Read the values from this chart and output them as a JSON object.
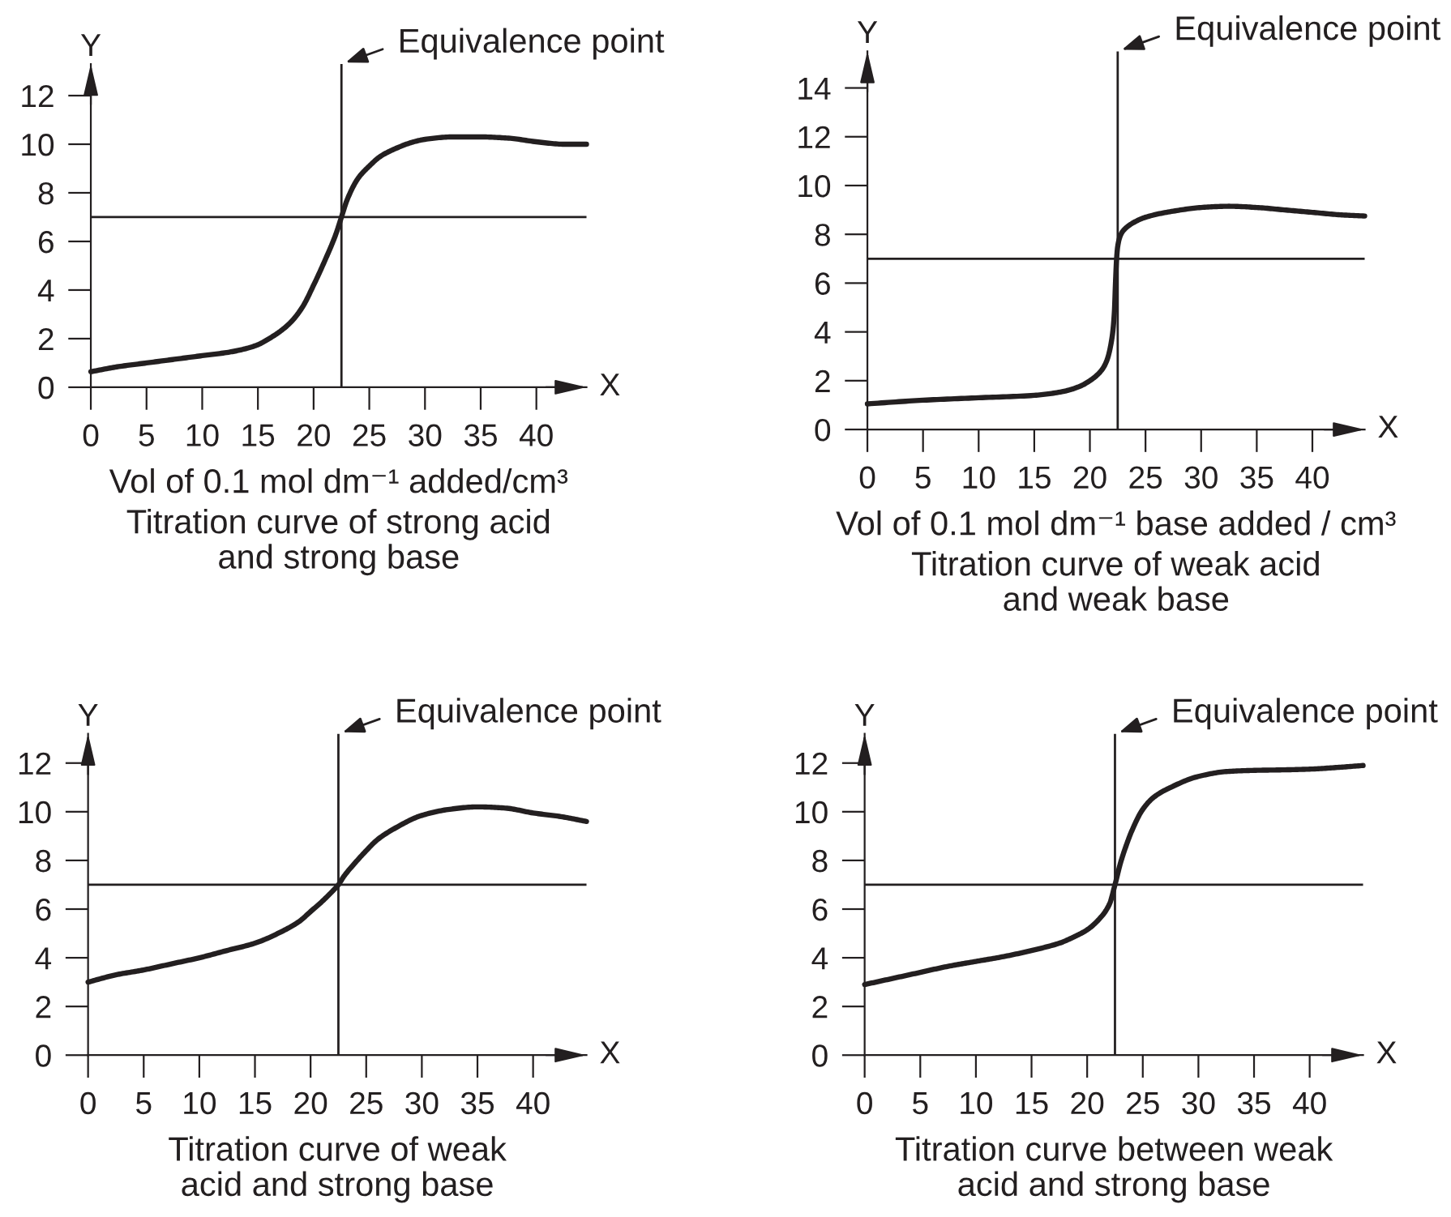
{
  "chart_data": [
    {
      "type": "line",
      "xlabel": "X",
      "ylabel": "Y",
      "title": "Titration curve of strong acid\nand strong base",
      "annotations": [
        "Vol of 0.1 mol dm⁻¹ added/cm³"
      ],
      "xlim": [
        0,
        44.5
      ],
      "xticks": [
        0,
        5,
        10,
        15,
        20,
        25,
        30,
        35,
        40
      ],
      "ylim": [
        0,
        13.3
      ],
      "yticks": [
        0,
        2,
        4,
        6,
        8,
        10,
        12
      ],
      "ref_lines": [
        {
          "axis": "x",
          "value": 22.5,
          "label": "Equivalence point",
          "color": "#231f20"
        },
        {
          "axis": "y",
          "value": 7,
          "color": "#231f20"
        }
      ],
      "series": [
        {
          "color": "#231f20",
          "x": [
            0,
            2.5,
            5,
            7.5,
            10,
            12.5,
            14,
            15,
            16,
            17,
            18,
            19,
            20,
            21,
            22,
            22.5,
            23,
            24,
            25,
            26,
            27.5,
            29,
            30,
            32.5,
            35,
            37.5,
            40,
            42.5,
            44.5
          ],
          "values": [
            0.64,
            0.85,
            1.0,
            1.15,
            1.3,
            1.45,
            1.6,
            1.75,
            2.0,
            2.3,
            2.7,
            3.3,
            4.2,
            5.2,
            6.3,
            7.0,
            7.7,
            8.6,
            9.1,
            9.5,
            9.85,
            10.1,
            10.2,
            10.3,
            10.3,
            10.25,
            10.1,
            10.0,
            10.0
          ]
        }
      ]
    },
    {
      "type": "line",
      "xlabel": "X",
      "ylabel": "Y",
      "title": "Titration curve of weak acid\nand weak base",
      "annotations": [
        "Vol of 0.1 mol dm⁻¹ base added / cm³"
      ],
      "xlim": [
        0,
        44.7
      ],
      "xticks": [
        0,
        5,
        10,
        15,
        20,
        25,
        30,
        35,
        40
      ],
      "ylim": [
        0,
        15.5
      ],
      "yticks": [
        0,
        2,
        4,
        6,
        8,
        10,
        12,
        14
      ],
      "ref_lines": [
        {
          "axis": "x",
          "value": 22.5,
          "label": "Equivalence point",
          "color": "#231f20"
        },
        {
          "axis": "y",
          "value": 7,
          "color": "#231f20"
        }
      ],
      "series": [
        {
          "color": "#231f20",
          "x": [
            0,
            5,
            10,
            15,
            17.5,
            19,
            20,
            21,
            21.5,
            22,
            22.2,
            22.3,
            22.4,
            22.5,
            22.7,
            23,
            24,
            25,
            27.5,
            30,
            32.5,
            35,
            37.5,
            40,
            42.5,
            44.7
          ],
          "values": [
            1.05,
            1.2,
            1.3,
            1.4,
            1.55,
            1.75,
            2.0,
            2.4,
            2.8,
            3.8,
            4.8,
            6.0,
            7.0,
            7.5,
            7.9,
            8.15,
            8.5,
            8.7,
            8.95,
            9.1,
            9.15,
            9.1,
            9.0,
            8.9,
            8.8,
            8.75
          ]
        }
      ]
    },
    {
      "type": "line",
      "xlabel": "X",
      "ylabel": "Y",
      "title": "Titration curve of weak\nacid and strong base",
      "xlim": [
        0,
        44.8
      ],
      "xticks": [
        0,
        5,
        10,
        15,
        20,
        25,
        30,
        35,
        40
      ],
      "ylim": [
        0,
        13.2
      ],
      "yticks": [
        0,
        2,
        4,
        6,
        8,
        10,
        12
      ],
      "ref_lines": [
        {
          "axis": "x",
          "value": 22.5,
          "label": "Equivalence point",
          "color": "#231f20"
        },
        {
          "axis": "y",
          "value": 7,
          "color": "#231f20"
        }
      ],
      "series": [
        {
          "color": "#231f20",
          "x": [
            0,
            2.5,
            5,
            7.5,
            10,
            12.5,
            15,
            17.5,
            19,
            20,
            21,
            22,
            22.5,
            23,
            24,
            25,
            26,
            27.5,
            30,
            32.5,
            35,
            37.5,
            40,
            42.5,
            44.8
          ],
          "values": [
            3.0,
            3.3,
            3.5,
            3.75,
            4.0,
            4.3,
            4.6,
            5.1,
            5.5,
            5.9,
            6.3,
            6.75,
            7.0,
            7.35,
            7.9,
            8.4,
            8.85,
            9.3,
            9.85,
            10.1,
            10.2,
            10.15,
            9.95,
            9.8,
            9.6
          ]
        }
      ]
    },
    {
      "type": "line",
      "xlabel": "X",
      "ylabel": "Y",
      "title": "Titration curve between weak\nacid and strong base",
      "xlim": [
        0,
        44.8
      ],
      "xticks": [
        0,
        5,
        10,
        15,
        20,
        25,
        30,
        35,
        40
      ],
      "ylim": [
        0,
        13.2
      ],
      "yticks": [
        0,
        2,
        4,
        6,
        8,
        10,
        12
      ],
      "ref_lines": [
        {
          "axis": "x",
          "value": 22.5,
          "label": "Equivalence point",
          "color": "#231f20"
        },
        {
          "axis": "y",
          "value": 7,
          "color": "#231f20"
        }
      ],
      "series": [
        {
          "color": "#231f20",
          "x": [
            0,
            2.5,
            5,
            7.5,
            10,
            12.5,
            15,
            17.5,
            19,
            20,
            21,
            22,
            22.5,
            23,
            23.5,
            24,
            25,
            26,
            27.5,
            30,
            32.5,
            35,
            37.5,
            40,
            42.5,
            44.8
          ],
          "values": [
            2.9,
            3.15,
            3.4,
            3.65,
            3.85,
            4.05,
            4.3,
            4.6,
            4.9,
            5.15,
            5.55,
            6.2,
            7.0,
            7.9,
            8.6,
            9.2,
            10.1,
            10.6,
            11.0,
            11.45,
            11.65,
            11.7,
            11.72,
            11.75,
            11.82,
            11.9
          ]
        }
      ]
    }
  ]
}
